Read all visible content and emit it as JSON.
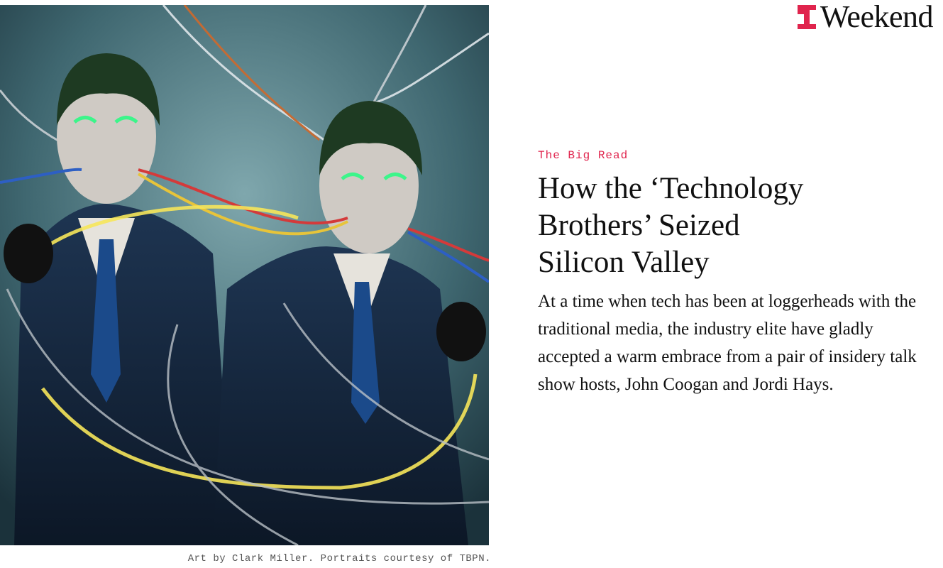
{
  "brand": {
    "name": "Weekend"
  },
  "article": {
    "kicker": "The Big Read",
    "headline_lines": [
      "How the ‘Technology",
      "Brothers’ Seized",
      "Silicon Valley"
    ],
    "dek": "At a time when tech has been at loggerheads with the traditional media, the industry elite have gladly accepted a warm embrace from a pair of insidery talk show hosts, John Coogan and Jordi Hays.",
    "image_caption": "Art by Clark Miller. Portraits courtesy of TBPN."
  }
}
